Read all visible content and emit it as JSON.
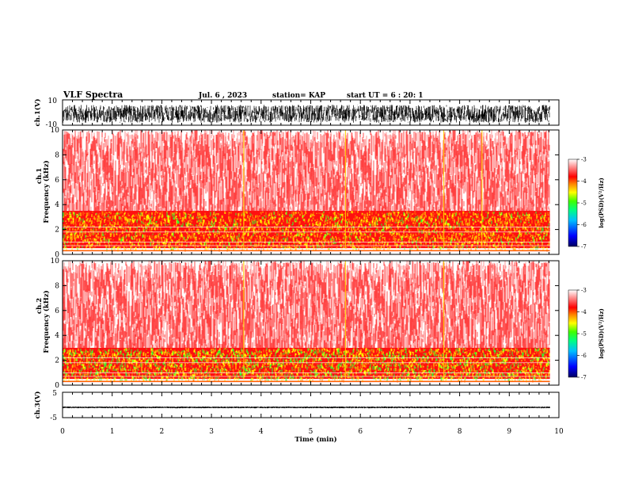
{
  "header": {
    "title": "VLF Spectra",
    "date": "Jul. 6 , 2023",
    "station": "station= KAP",
    "start": "start UT = 6 : 20: 1"
  },
  "chart_data": [
    {
      "type": "line",
      "name": "ch1-waveform",
      "ylabel": "ch.1(V)",
      "ylim": [
        -10,
        10
      ],
      "yticks": [
        "10",
        "-10"
      ],
      "xlim": [
        0,
        10
      ],
      "description_values": {
        "typical_min": -8,
        "typical_max": 6
      }
    },
    {
      "type": "heatmap",
      "name": "ch1-spectrogram",
      "ylabel": "ch.1 Frequency (kHz)",
      "ylim": [
        0,
        10
      ],
      "yticks": [
        "0",
        "2",
        "4",
        "6",
        "8",
        "10"
      ],
      "xlim": [
        0,
        10
      ],
      "colorbar": {
        "label": "log(PSD)(V²/Hz)",
        "range": [
          -7,
          -3
        ],
        "ticks": [
          "-3",
          "-4",
          "-5",
          "-6",
          "-7"
        ]
      },
      "bands_khz": {
        "strong_min": 0.5,
        "strong_max": 3.5,
        "low_line": 0.3
      },
      "bursts_min": [
        3.65,
        5.7,
        7.68,
        8.45
      ]
    },
    {
      "type": "heatmap",
      "name": "ch2-spectrogram",
      "ylabel": "ch.2 Frequency (kHz)",
      "ylim": [
        0,
        10
      ],
      "yticks": [
        "0",
        "2",
        "4",
        "6",
        "8",
        "10"
      ],
      "xlim": [
        0,
        10
      ],
      "colorbar": {
        "label": "log(PSD)(V²/Hz)",
        "range": [
          -7,
          -3
        ],
        "ticks": [
          "-3",
          "-4",
          "-5",
          "-6",
          "-7"
        ]
      },
      "bands_khz": {
        "strong_min": 0.5,
        "strong_max": 3.0,
        "low_line": 0.3
      },
      "bursts_min": [
        3.65,
        5.7,
        7.68
      ]
    },
    {
      "type": "line",
      "name": "ch3-waveform",
      "ylabel": "ch.3(V)",
      "ylim": [
        -5,
        5
      ],
      "yticks": [
        "5",
        "-5"
      ],
      "xlim": [
        0,
        10
      ],
      "description_values": {
        "typical_min": -1.3,
        "typical_max": -0.6
      }
    }
  ],
  "xaxis": {
    "label": "Time (min)",
    "ticks": [
      "0",
      "1",
      "2",
      "3",
      "4",
      "5",
      "6",
      "7",
      "8",
      "9",
      "10"
    ],
    "data_end_min": 9.82
  },
  "colors": {
    "palette": [
      "#000080",
      "#0000ff",
      "#00a0ff",
      "#00ffff",
      "#00ff00",
      "#ffff00",
      "#ff8000",
      "#ff0000",
      "#ffffff"
    ]
  }
}
